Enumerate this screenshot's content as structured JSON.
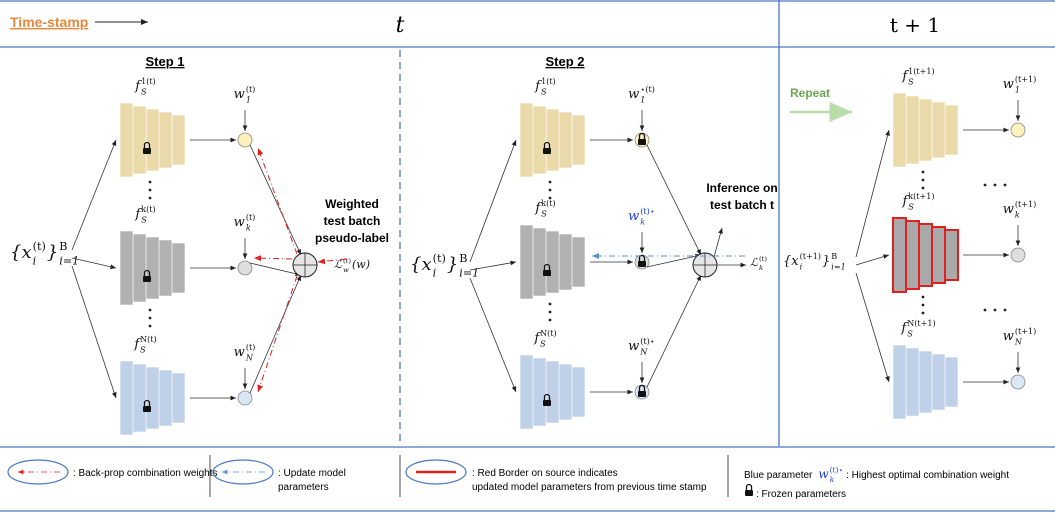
{
  "header": {
    "timestamp_label": "Time-stamp",
    "t": "t",
    "t_next": "t + 1"
  },
  "panels": [
    {
      "title": "Step 1",
      "input": [
        {
          "t": "{x",
          "sub": "i",
          "sup": "(t)"
        },
        {
          "t": "}",
          "sub": "i=1",
          "sup": "B"
        }
      ],
      "models": [
        {
          "f": [
            {
              "t": "f",
              "sub": "S",
              "sup": "1(t)"
            }
          ],
          "w": [
            {
              "t": "w",
              "sub": "1",
              "sup": "(t)"
            }
          ]
        },
        {
          "f": [
            {
              "t": "f",
              "sub": "S",
              "sup": "k(t)"
            }
          ],
          "w": [
            {
              "t": "w",
              "sub": "k",
              "sup": "(t)"
            }
          ]
        },
        {
          "f": [
            {
              "t": "f",
              "sub": "S",
              "sup": "N(t)"
            }
          ],
          "w": [
            {
              "t": "w",
              "sub": "N",
              "sup": "(t)"
            }
          ]
        }
      ],
      "note": [
        "Weighted",
        "test batch",
        "pseudo-label"
      ],
      "loss": [
        {
          "t": "ℒ",
          "sub": "w",
          "sup": "(t)"
        },
        {
          "t": "(w)"
        }
      ]
    },
    {
      "title": "Step 2",
      "input": [
        {
          "t": "{x",
          "sub": "i",
          "sup": "(t)"
        },
        {
          "t": "}",
          "sub": "i=1",
          "sup": "B"
        }
      ],
      "models": [
        {
          "f": [
            {
              "t": "f",
              "sub": "S",
              "sup": "1(t)"
            }
          ],
          "w": [
            {
              "t": "w",
              "sub": "1",
              "sup": "⋆(t)"
            }
          ]
        },
        {
          "f": [
            {
              "t": "f",
              "sub": "S",
              "sup": "k(t)"
            }
          ],
          "w": [
            {
              "t": "w",
              "sub": "k",
              "sup": "(t)⋆"
            }
          ],
          "color": "#1f3fd6"
        },
        {
          "f": [
            {
              "t": "f",
              "sub": "S",
              "sup": "N(t)"
            }
          ],
          "w": [
            {
              "t": "w",
              "sub": "N",
              "sup": "(t)⋆"
            }
          ]
        }
      ],
      "note": [
        "Inference on",
        "test batch t"
      ],
      "loss": [
        {
          "t": "ℒ",
          "sub": "k",
          "sup": "(t)"
        }
      ]
    },
    {
      "title": "Repeat",
      "input": [
        {
          "t": "{x",
          "sub": "i",
          "sup": "(t+1)"
        },
        {
          "t": "}",
          "sub": "i=1",
          "sup": "B"
        }
      ],
      "models": [
        {
          "f": [
            {
              "t": "f",
              "sub": "S",
              "sup": "1(t+1)"
            }
          ],
          "w": [
            {
              "t": "w",
              "sub": "1",
              "sup": "(t+1)"
            }
          ]
        },
        {
          "f": [
            {
              "t": "f",
              "sub": "S",
              "sup": "k(t+1)"
            }
          ],
          "w": [
            {
              "t": "w",
              "sub": "k",
              "sup": "(t+1)"
            }
          ]
        },
        {
          "f": [
            {
              "t": "f",
              "sub": "S",
              "sup": "N(t+1)"
            }
          ],
          "w": [
            {
              "t": "w",
              "sub": "N",
              "sup": "(t+1)"
            }
          ]
        }
      ]
    }
  ],
  "legend": {
    "backprop": ": Back-prop combination weights",
    "update": [
      ": Update model",
      "parameters"
    ],
    "red_border": [
      ": Red Border on source indicates",
      "updated model parameters from previous time stamp"
    ],
    "blue_param": "Blue parameter",
    "blue_symbol": [
      {
        "t": "w",
        "sub": "k",
        "sup": "(t)⋆"
      }
    ],
    "blue_desc": ": Highest optimal combination weight",
    "frozen": ": Frozen parameters"
  }
}
